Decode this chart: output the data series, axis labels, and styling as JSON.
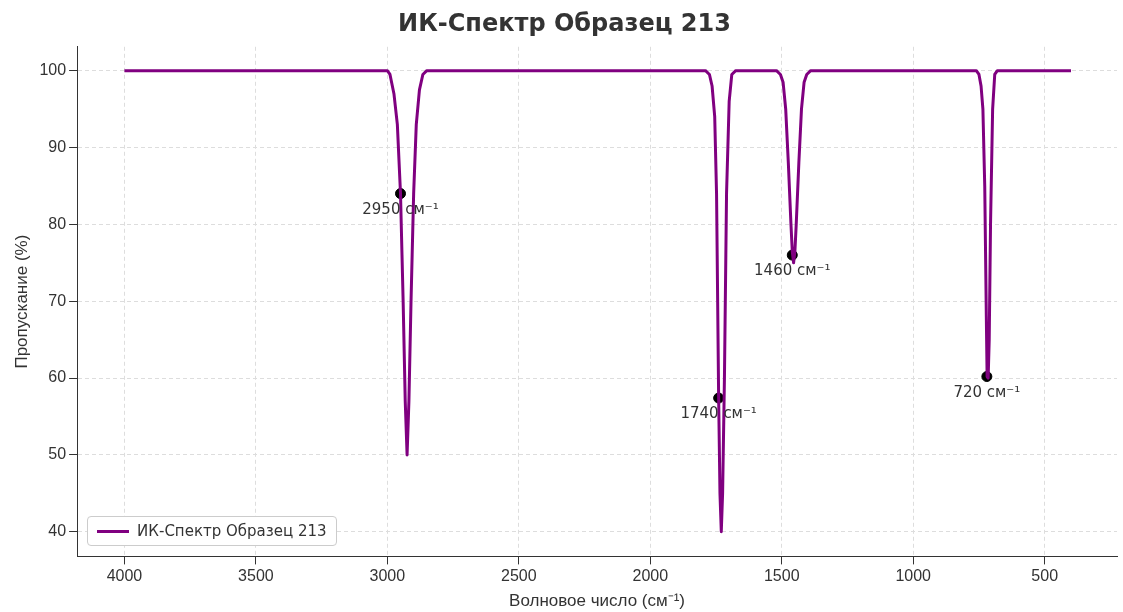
{
  "chart_data": {
    "type": "line",
    "title": "ИК-Спектр Образец 213",
    "xlabel": "Волновое число (см⁻¹)",
    "ylabel": "Пропускание (%)",
    "series": [
      {
        "name": "ИК-Спектр Образец 213",
        "color": "#800080",
        "type": "line",
        "marker": "none",
        "x": [
          4000,
          3000,
          2990,
          2975,
          2962,
          2950,
          2940,
          2932,
          2925,
          2918,
          2910,
          2900,
          2890,
          2878,
          2865,
          2850,
          1790,
          1775,
          1765,
          1755,
          1748,
          1740,
          1735,
          1730,
          1725,
          1718,
          1710,
          1700,
          1690,
          1675,
          1520,
          1505,
          1495,
          1485,
          1475,
          1465,
          1460,
          1455,
          1450,
          1445,
          1435,
          1425,
          1415,
          1405,
          1390,
          760,
          750,
          742,
          735,
          728,
          722,
          719,
          715,
          711,
          706,
          698,
          690,
          680,
          400
        ],
        "values": [
          100,
          100,
          99.5,
          97,
          93,
          84,
          70,
          57,
          50,
          57,
          70,
          84,
          93,
          97.5,
          99.5,
          100,
          100,
          99.5,
          98,
          94,
          84,
          57.4,
          45,
          40,
          45,
          60,
          84,
          96,
          99.5,
          100,
          100,
          99.5,
          98.5,
          95,
          88,
          80,
          76.5,
          75,
          76.5,
          80,
          88,
          95,
          98.5,
          99.5,
          100,
          100,
          99.5,
          98,
          95,
          85,
          68,
          60.2,
          60,
          65,
          80,
          95,
          99.5,
          100,
          100
        ]
      },
      {
        "color": "#000000",
        "type": "scatter",
        "marker": "circle",
        "x": [
          2950,
          1740,
          1460,
          720
        ],
        "values": [
          84,
          57.4,
          76,
          60.2
        ]
      }
    ],
    "annotations": [
      {
        "text": "2950 см⁻¹",
        "x": 2950,
        "y": 84
      },
      {
        "text": "1740 см⁻¹",
        "x": 1740,
        "y": 57.4
      },
      {
        "text": "1460 см⁻¹",
        "x": 1460,
        "y": 76
      },
      {
        "text": "720 см⁻¹",
        "x": 720,
        "y": 60.2
      }
    ],
    "xlim": [
      4180,
      225
    ],
    "xticks": [
      4000,
      3500,
      3000,
      2500,
      2000,
      1500,
      1000,
      500
    ],
    "ylim": [
      36.8,
      103.1
    ],
    "yticks": [
      40,
      50,
      60,
      70,
      80,
      90,
      100
    ],
    "grid": true,
    "legend": "bottom left",
    "line_style": "solid"
  }
}
